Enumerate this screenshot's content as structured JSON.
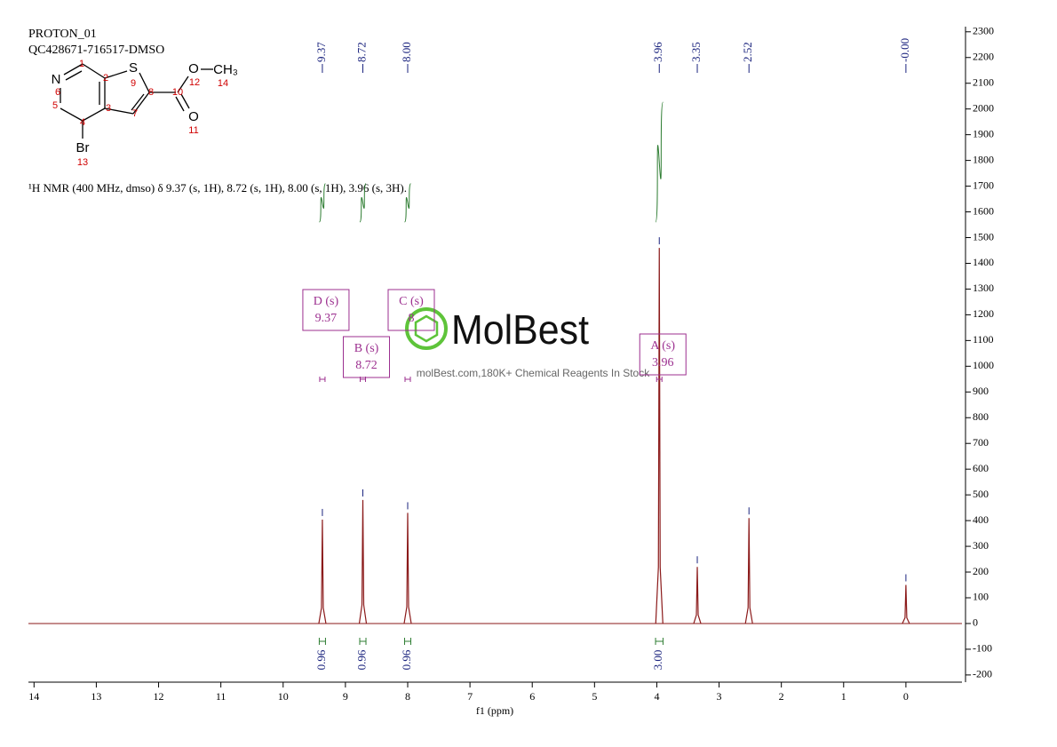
{
  "chart_data": {
    "type": "spectrum",
    "header": [
      "PROTON_01",
      "QC428671-716517-DMSO"
    ],
    "description": "¹H NMR (400 MHz, dmso) δ 9.37 (s, 1H), 8.72 (s, 1H), 8.00 (s, 1H), 3.96 (s, 3H).",
    "x_label": "f1 (ppm)",
    "xlim": [
      14.09,
      -0.9
    ],
    "xticks": [
      14,
      13,
      12,
      11,
      10,
      9,
      8,
      7,
      6,
      5,
      4,
      3,
      2,
      1,
      0
    ],
    "ylim": [
      -228,
      2320
    ],
    "yticks": [
      -200,
      -100,
      0,
      100,
      200,
      300,
      400,
      500,
      600,
      700,
      800,
      900,
      1000,
      1100,
      1200,
      1300,
      1400,
      1500,
      1600,
      1700,
      1800,
      1900,
      2000,
      2100,
      2200,
      2300
    ],
    "color": "#8b1a1a",
    "peaks": {
      "x": [
        9.37,
        8.72,
        8.0,
        3.96,
        3.35,
        2.52,
        0
      ],
      "x_labels": [
        "9.37",
        "8.72",
        "8.00",
        "3.96",
        "3.35",
        "2.52",
        "-0.00"
      ],
      "values": [
        404,
        480,
        430,
        1460,
        220,
        410,
        150
      ]
    },
    "integrals": {
      "ranges": [
        [
          9.42,
          9.32
        ],
        [
          8.77,
          8.67
        ],
        [
          8.05,
          7.95
        ],
        [
          4.02,
          3.9
        ]
      ],
      "values": [
        0.96,
        0.96,
        0.96,
        3
      ],
      "value_labels": [
        "0.96",
        "0.96",
        "0.96",
        "3.00"
      ]
    },
    "multiplets": [
      {
        "label": "D (s)",
        "shift": 9.37
      },
      {
        "label": "B (s)",
        "shift": 8.72
      },
      {
        "label": "C (s)",
        "shift": 8.0
      },
      {
        "label": "A (s)",
        "shift": 3.96
      }
    ],
    "structure": {
      "atoms": [
        "N",
        "S",
        "O",
        "CH₃",
        "O",
        "Br"
      ],
      "numbers": [
        "1",
        "2",
        "3",
        "4",
        "5",
        "6",
        "7",
        "8",
        "9",
        "10",
        "11",
        "12",
        "13",
        "14"
      ]
    },
    "watermark": {
      "logo": "MolBest",
      "text": "molBest.com,180K+ Chemical Reagents In Stock"
    }
  }
}
